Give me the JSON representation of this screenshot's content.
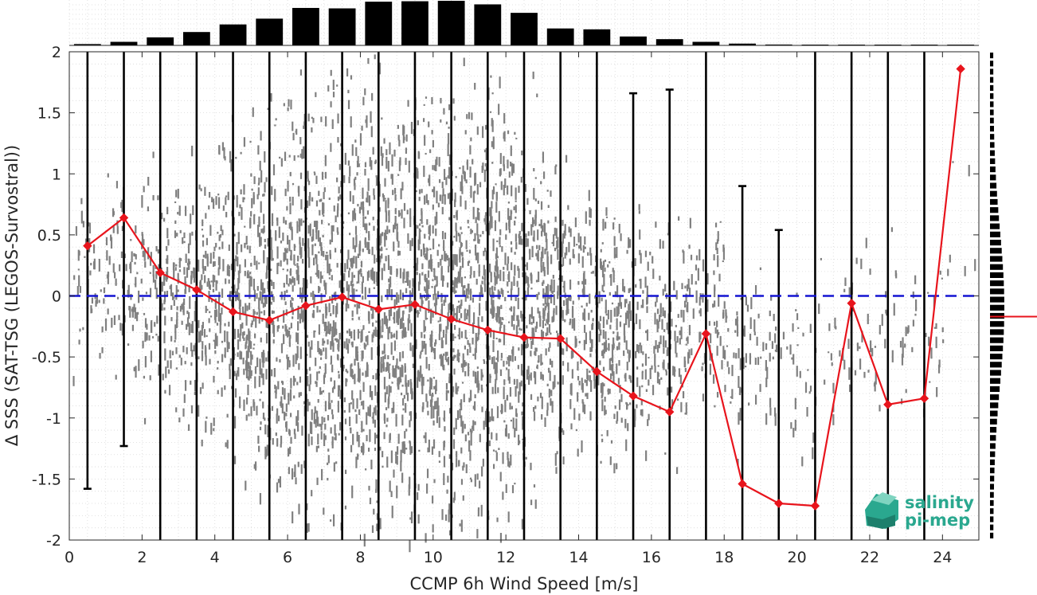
{
  "chart_data": {
    "type": "scatter",
    "xlabel": "CCMP 6h Wind Speed [m/s]",
    "ylabel": "Δ SSS (SAT-TSG (LEGOS-Survostral))",
    "xlim": [
      0,
      25
    ],
    "ylim": [
      -2,
      2
    ],
    "xticks": [
      0,
      2,
      4,
      6,
      8,
      10,
      12,
      14,
      16,
      18,
      20,
      22,
      24
    ],
    "yticks": [
      -2,
      -1.5,
      -1,
      -0.5,
      0,
      0.5,
      1,
      1.5,
      2
    ],
    "grid": true,
    "bin_centers": [
      0.5,
      1.5,
      2.5,
      3.5,
      4.5,
      5.5,
      6.5,
      7.5,
      8.5,
      9.5,
      10.5,
      11.5,
      12.5,
      13.5,
      14.5,
      15.5,
      16.5,
      17.5,
      18.5,
      19.5,
      20.5,
      21.5,
      22.5,
      23.5,
      24.5
    ],
    "series": [
      {
        "values": [
          0.41,
          0.64,
          0.19,
          0.05,
          -0.13,
          -0.2,
          -0.08,
          -0.01,
          -0.11,
          -0.07,
          -0.19,
          -0.28,
          -0.34,
          -0.35,
          -0.62,
          -0.82,
          -0.95,
          -0.31,
          -1.54,
          -1.7,
          -1.72,
          -0.06,
          -0.89,
          -0.84,
          1.86
        ],
        "color": "#e8141c"
      }
    ],
    "error_bars": {
      "lower": [
        -1.58,
        -1.23,
        -2,
        -2,
        -2,
        -2,
        -2,
        -2,
        -2,
        -2,
        -2,
        -2,
        -2,
        -2,
        -2,
        -2,
        -2,
        -2,
        -2,
        -2,
        -2,
        -2,
        -2,
        -2,
        null
      ],
      "upper": [
        2,
        2,
        2,
        2,
        2,
        2,
        2,
        2,
        2,
        2,
        2,
        2,
        2,
        2,
        2,
        1.66,
        1.69,
        2,
        0.9,
        0.54,
        2,
        2,
        2,
        2,
        null
      ],
      "color": "#000000"
    },
    "zero_line": {
      "y": 0,
      "color": "#1414d2",
      "style": "dashed"
    },
    "top_histogram": [
      0.03,
      0.08,
      0.18,
      0.3,
      0.47,
      0.6,
      0.84,
      0.83,
      0.98,
      0.99,
      1.0,
      0.92,
      0.73,
      0.38,
      0.36,
      0.2,
      0.14,
      0.08,
      0.04,
      0.02,
      0.01,
      0.01,
      0.01,
      0.01,
      0.0
    ],
    "right_histogram_marker": -0.17,
    "scatter_color": "#808080"
  },
  "logo": {
    "line1": "salinity",
    "line2": "pi-mep",
    "color": "#2aa88f"
  }
}
